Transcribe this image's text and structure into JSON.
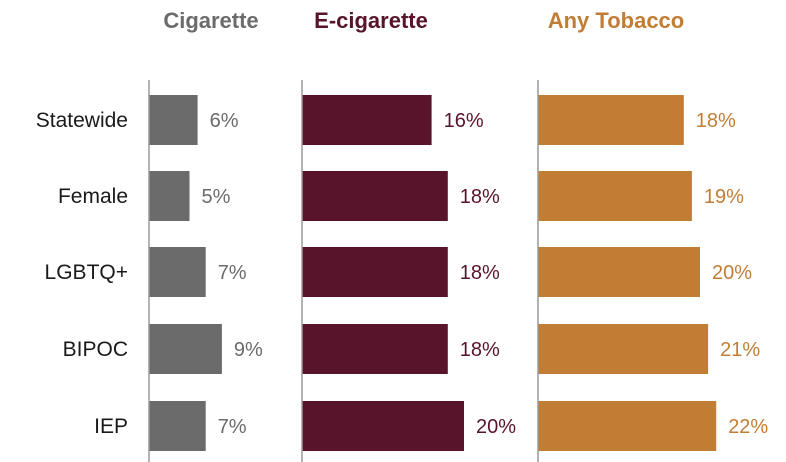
{
  "colors": {
    "cigarette": "#6b6b6b",
    "e_cigarette": "#58142b",
    "any_tobacco": "#c27d35",
    "axis": "#9a9a9a",
    "category_text": "#1a1a1a"
  },
  "chart_data": {
    "type": "bar",
    "orientation": "horizontal",
    "layout": "small-multiples",
    "categories": [
      "Statewide",
      "Female",
      "LGBTQ+",
      "BIPOC",
      "IEP"
    ],
    "series": [
      {
        "name": "Cigarette",
        "color": "#6b6b6b",
        "values": [
          6,
          5,
          7,
          9,
          7
        ],
        "labels": [
          "6%",
          "5%",
          "7%",
          "9%",
          "7%"
        ]
      },
      {
        "name": "E-cigarette",
        "color": "#58142b",
        "values": [
          16,
          18,
          18,
          18,
          20
        ],
        "labels": [
          "16%",
          "18%",
          "18%",
          "18%",
          "20%"
        ]
      },
      {
        "name": "Any Tobacco",
        "color": "#c27d35",
        "values": [
          18,
          19,
          20,
          21,
          22
        ],
        "labels": [
          "18%",
          "19%",
          "20%",
          "21%",
          "22%"
        ]
      }
    ],
    "value_unit": "%",
    "xlim": [
      0,
      22
    ],
    "grid": false,
    "legend": "none"
  }
}
